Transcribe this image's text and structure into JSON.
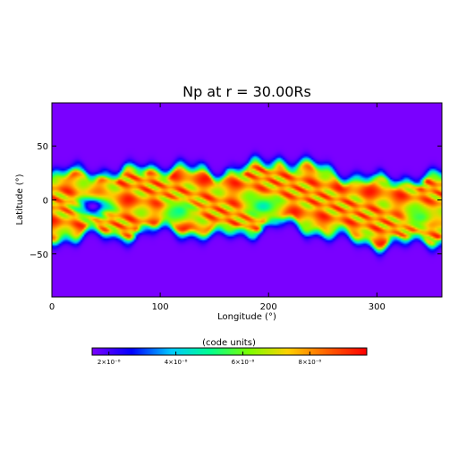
{
  "chart_data": {
    "type": "heatmap",
    "title": "Np at r = 30.00Rs",
    "xlabel": "Longitude (°)",
    "ylabel": "Latitude (°)",
    "xlim": [
      0,
      360
    ],
    "ylim": [
      -90,
      90
    ],
    "x_ticks": [
      {
        "value": 0,
        "label": "0"
      },
      {
        "value": 100,
        "label": "100"
      },
      {
        "value": 200,
        "label": "200"
      },
      {
        "value": 300,
        "label": "300"
      }
    ],
    "y_ticks": [
      {
        "value": -50,
        "label": "−50"
      },
      {
        "value": 0,
        "label": "0"
      },
      {
        "value": 50,
        "label": "50"
      }
    ],
    "colorbar": {
      "label": "(code units)",
      "range": [
        1.5e-08,
        9.7e-08
      ],
      "ticks": [
        {
          "value": 2e-08,
          "label": "2×10⁻⁸"
        },
        {
          "value": 4e-08,
          "label": "4×10⁻⁸"
        },
        {
          "value": 6e-08,
          "label": "6×10⁻⁸"
        },
        {
          "value": 8e-08,
          "label": "8×10⁻⁸"
        }
      ],
      "colormap": [
        "#7a00ff",
        "#0000ff",
        "#00c8ff",
        "#00ff90",
        "#7cff00",
        "#ffd000",
        "#ff6000",
        "#ff0000"
      ]
    },
    "band": {
      "background_value": 1.5e-08,
      "peak_value": 9.5e-08,
      "center_lat": [
        [
          0,
          -8
        ],
        [
          30,
          -2
        ],
        [
          60,
          -6
        ],
        [
          90,
          2
        ],
        [
          120,
          0
        ],
        [
          150,
          -4
        ],
        [
          180,
          0
        ],
        [
          210,
          8
        ],
        [
          240,
          2
        ],
        [
          270,
          -6
        ],
        [
          300,
          -12
        ],
        [
          330,
          -10
        ],
        [
          360,
          -8
        ]
      ],
      "half_width_deg": 22,
      "fade_width_deg": 8,
      "voids": [
        {
          "lon": 38,
          "lat": -6,
          "value": 1.5e-08
        },
        {
          "lon": 118,
          "lat": -10,
          "value": 5e-08
        },
        {
          "lon": 195,
          "lat": -6,
          "value": 4.5e-08
        },
        {
          "lon": 340,
          "lat": -16,
          "value": 5.5e-08
        }
      ]
    }
  }
}
